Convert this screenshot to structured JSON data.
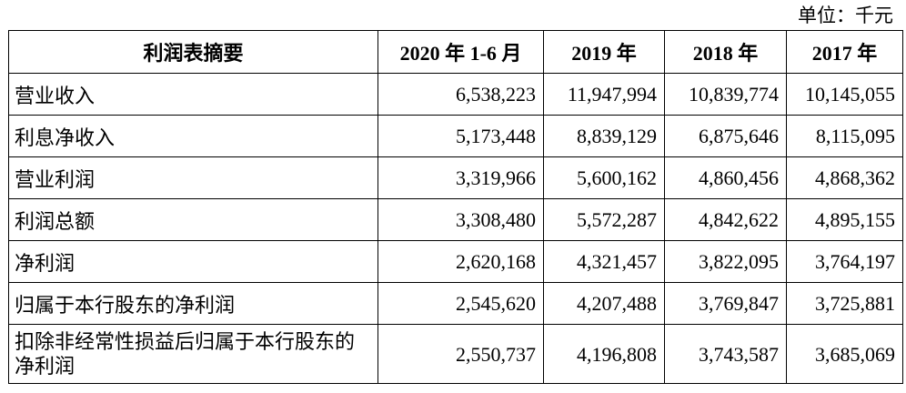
{
  "unit_label": "单位：千元",
  "headers": [
    "利润表摘要",
    "2020 年 1-6 月",
    "2019 年",
    "2018 年",
    "2017 年"
  ],
  "rows": [
    {
      "label": "营业收入",
      "values": [
        "6,538,223",
        "11,947,994",
        "10,839,774",
        "10,145,055"
      ]
    },
    {
      "label": "利息净收入",
      "values": [
        "5,173,448",
        "8,839,129",
        "6,875,646",
        "8,115,095"
      ]
    },
    {
      "label": "营业利润",
      "values": [
        "3,319,966",
        "5,600,162",
        "4,860,456",
        "4,868,362"
      ]
    },
    {
      "label": "利润总额",
      "values": [
        "3,308,480",
        "5,572,287",
        "4,842,622",
        "4,895,155"
      ]
    },
    {
      "label": "净利润",
      "values": [
        "2,620,168",
        "4,321,457",
        "3,822,095",
        "3,764,197"
      ]
    },
    {
      "label": "归属于本行股东的净利润",
      "values": [
        "2,545,620",
        "4,207,488",
        "3,769,847",
        "3,725,881"
      ]
    },
    {
      "label": "扣除非经常性损益后归属于本行股东的净利润",
      "values": [
        "2,550,737",
        "4,196,808",
        "3,743,587",
        "3,685,069"
      ]
    }
  ]
}
